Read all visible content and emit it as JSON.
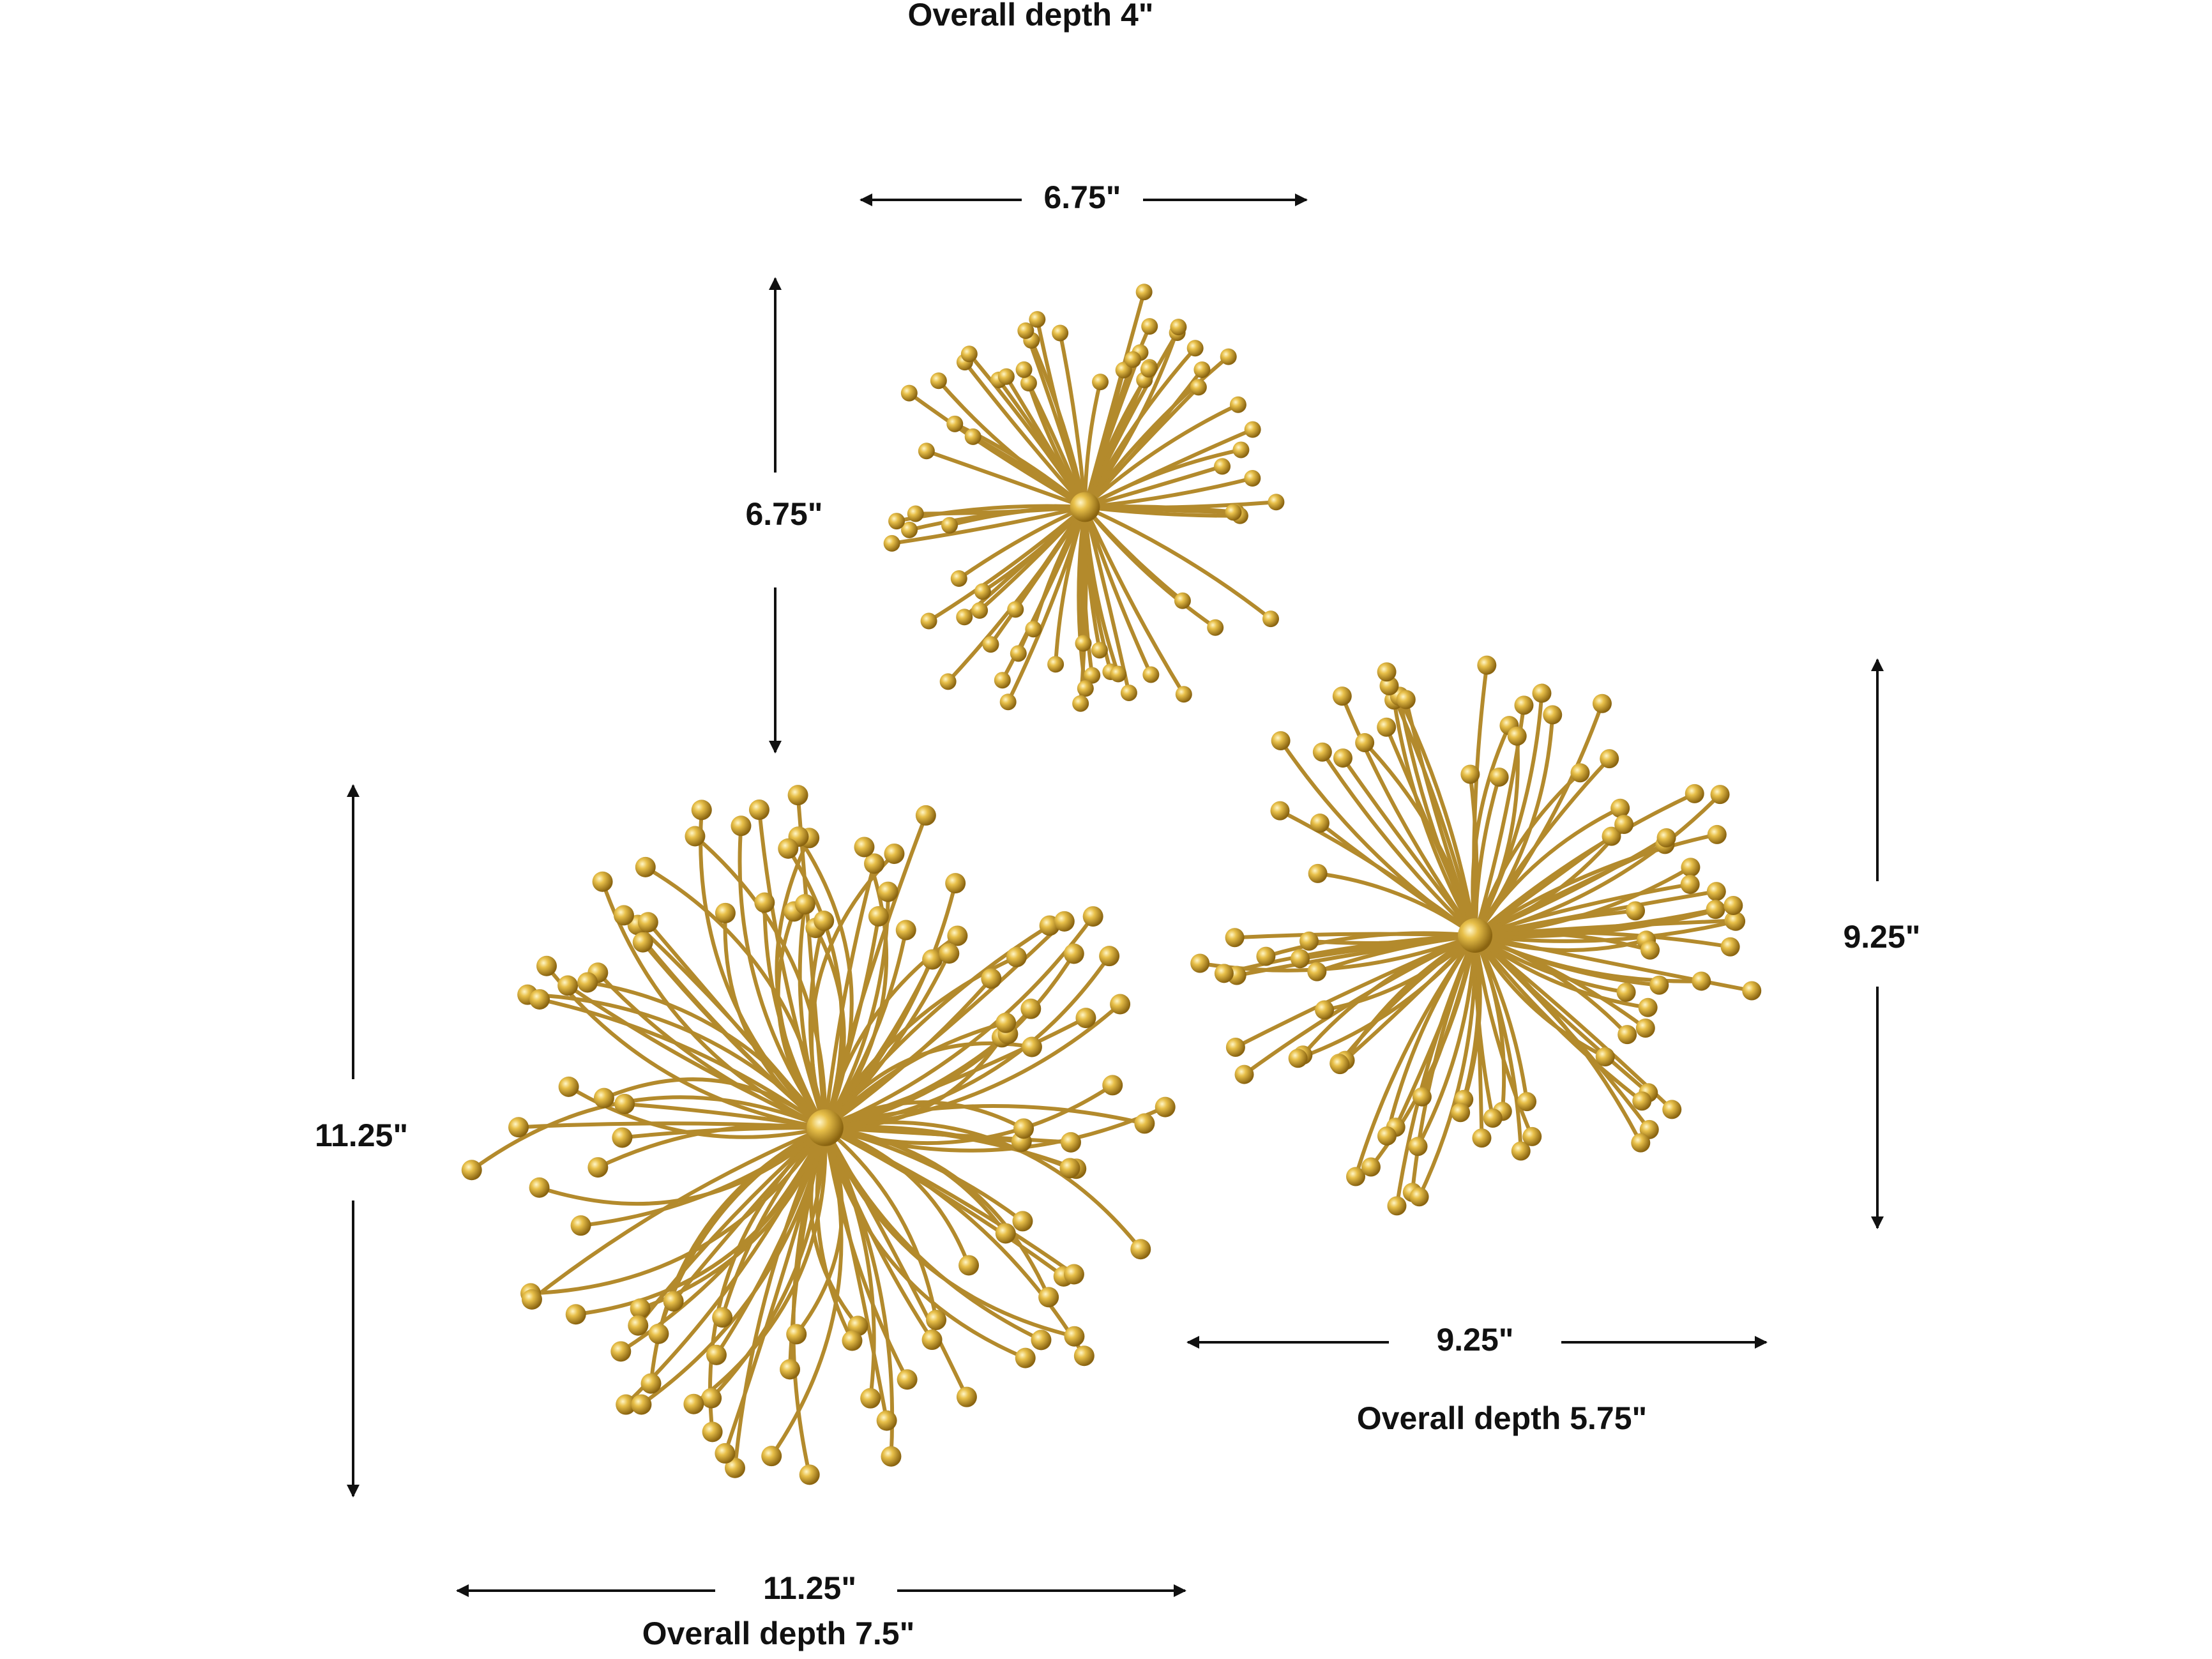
{
  "items": [
    {
      "width": "6.75\"",
      "height": "6.75\"",
      "depth": "Overall depth 4\""
    },
    {
      "width": "9.25\"",
      "height": "9.25\"",
      "depth": "Overall depth 5.75\""
    },
    {
      "width": "11.25\"",
      "height": "11.25\"",
      "depth": "Overall depth 7.5\""
    }
  ]
}
